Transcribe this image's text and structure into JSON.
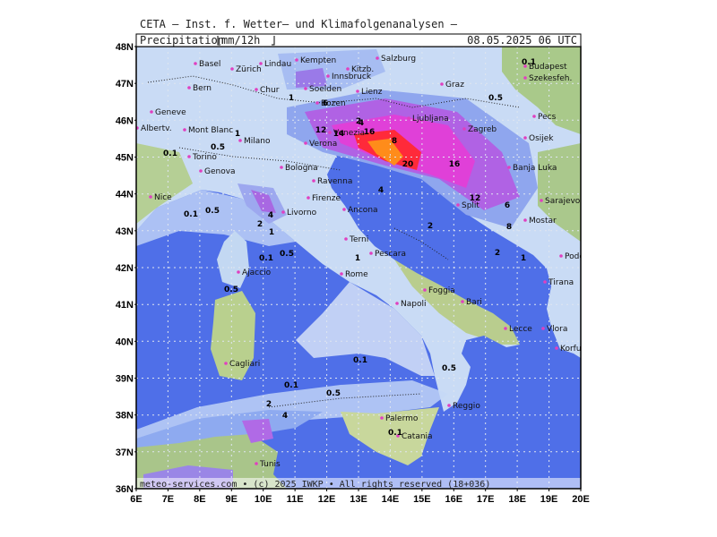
{
  "header": {
    "title": "CETA — Inst. f. Wetter— und Klimafolgenanalysen —",
    "field": "Precipitation",
    "unit": "mm/12h",
    "valid": "08.05.2025 06 UTC"
  },
  "footer": "meteo-services.com • (c) 2025 IWKP • All rights reserved (18+036)",
  "axes": {
    "lat_labels": [
      "48N",
      "47N",
      "46N",
      "45N",
      "44N",
      "43N",
      "42N",
      "41N",
      "40N",
      "39N",
      "38N",
      "37N",
      "36N"
    ],
    "lon_labels": [
      "6E",
      "7E",
      "8E",
      "9E",
      "10E",
      "11E",
      "12E",
      "13E",
      "14E",
      "15E",
      "16E",
      "17E",
      "18E",
      "19E",
      "20E"
    ]
  },
  "cities": [
    "Basel",
    "Zürich",
    "Lindau",
    "Kempten",
    "Salzburg",
    "Kitzb.",
    "Innsbruck",
    "Bern",
    "Chur",
    "Soelden",
    "Lienz",
    "Bozen",
    "Graz",
    "Budapest",
    "Szekesfeh.",
    "Geneve",
    "Albertv.",
    "Mont Blanc",
    "Milano",
    "Verona",
    "Venezia",
    "Ljubljana",
    "Zagreb",
    "Pecs",
    "Osijek",
    "Torino",
    "Bologna",
    "Banja Luka",
    "Genova",
    "Ravenna",
    "Nice",
    "Firenze",
    "Split",
    "Sarajevo",
    "Livorno",
    "Ancona",
    "Mostar",
    "Terni",
    "Pescara",
    "Podgorica",
    "Ajaccio",
    "Rome",
    "Foggia",
    "Tirana",
    "Napoli",
    "Bari",
    "Lecce",
    "Vlora",
    "Korfu",
    "Cagliari",
    "Reggio",
    "Palermo",
    "Catania",
    "Tunis"
  ],
  "contour_labels": [
    "0.1",
    "0.5",
    "1",
    "2",
    "4",
    "6",
    "8",
    "12",
    "14",
    "16",
    "20",
    "16",
    "12",
    "8",
    "6",
    "4",
    "2",
    "1",
    "0.5",
    "0.1",
    "0.5",
    "0.1",
    "0.5",
    "1",
    "2",
    "4",
    "0.1",
    "0.5",
    "1",
    "2",
    "4",
    "0.1",
    "0.5",
    "0.1",
    "0.5",
    "2",
    "1",
    "0.1"
  ]
}
